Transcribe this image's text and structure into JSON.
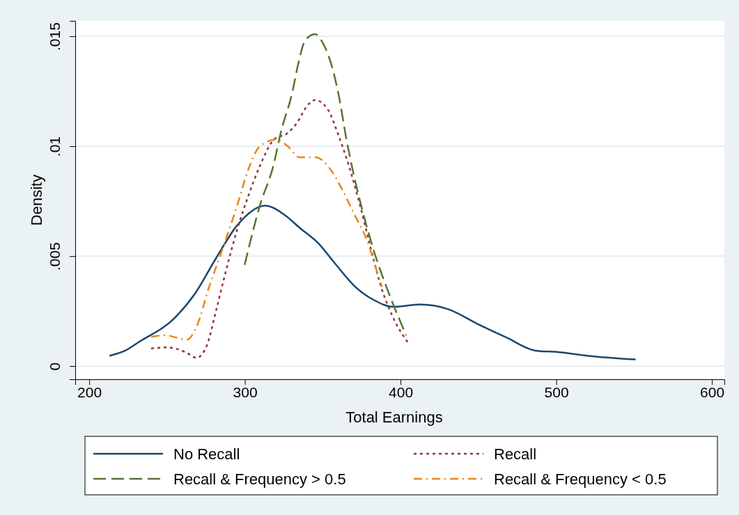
{
  "chart_data": {
    "type": "line",
    "xlabel": "Total Earnings",
    "ylabel": "Density",
    "xlim": [
      191,
      608
    ],
    "ylim": [
      -0.0006,
      0.0157
    ],
    "xticks": [
      200,
      300,
      400,
      500,
      600
    ],
    "yticks": [
      {
        "value": 0,
        "label": "0"
      },
      {
        "value": 0.005,
        "label": ".005"
      },
      {
        "value": 0.01,
        "label": ".01"
      },
      {
        "value": 0.015,
        "label": ".015"
      }
    ],
    "grid": "y",
    "legend": "bottom",
    "series": [
      {
        "name": "No Recall",
        "color": "#1a476f",
        "line_style": "solid",
        "x": [
          213,
          223,
          232,
          255,
          268,
          281.4,
          295,
          313,
          325,
          335,
          347,
          357.5,
          371,
          383,
          395,
          412.5,
          430,
          450,
          468,
          487,
          500.7,
          520,
          551
        ],
        "values": [
          0.00047,
          0.0007,
          0.0011,
          0.0022,
          0.0033,
          0.0049,
          0.0064,
          0.0073,
          0.0069,
          0.0063,
          0.0056,
          0.0047,
          0.0036,
          0.003,
          0.0027,
          0.0028,
          0.0026,
          0.0019,
          0.0013,
          0.0007,
          0.00064,
          0.00047,
          0.0003
        ]
      },
      {
        "name": "Recall",
        "color": "#90353b",
        "line_style": "dotted",
        "x": [
          239.8,
          250,
          262,
          269,
          275.6,
          281.4,
          287,
          295,
          302.5,
          309.6,
          318.6,
          327.5,
          333.8,
          339.6,
          345,
          353,
          360.6,
          366.4,
          374,
          380,
          387.5,
          394.6,
          405.4
        ],
        "values": [
          0.0008,
          0.00085,
          0.00063,
          0.00038,
          0.00095,
          0.0025,
          0.0041,
          0.0062,
          0.0078,
          0.0091,
          0.0103,
          0.0106,
          0.0111,
          0.0118,
          0.0121,
          0.0117,
          0.0104,
          0.0092,
          0.0073,
          0.0056,
          0.0036,
          0.0023,
          0.001
        ]
      },
      {
        "name": "Recall & Frequency > 0.5",
        "color": "#55752f",
        "line_style": "dashed",
        "x": [
          299.8,
          309.6,
          318.6,
          323,
          330.6,
          333.8,
          338.7,
          345,
          350,
          356,
          360.6,
          365,
          369.6,
          375.4,
          383,
          392,
          403.6
        ],
        "values": [
          0.0046,
          0.0073,
          0.0092,
          0.0106,
          0.0125,
          0.0136,
          0.0148,
          0.0151,
          0.0147,
          0.0136,
          0.0122,
          0.0104,
          0.0088,
          0.0071,
          0.0052,
          0.0034,
          0.0014
        ]
      },
      {
        "name": "Recall & Frequency < 0.5",
        "color": "#e8871e",
        "line_style": "dashdot",
        "x": [
          239.8,
          248.8,
          262.6,
          269,
          277,
          286,
          295,
          302.5,
          309.6,
          320,
          327.5,
          335,
          345.4,
          354.4,
          362,
          369.6,
          378.5,
          385.7,
          388
        ],
        "values": [
          0.00133,
          0.0014,
          0.0012,
          0.0018,
          0.0036,
          0.0054,
          0.0073,
          0.009,
          0.01,
          0.0103,
          0.01,
          0.0095,
          0.0095,
          0.009,
          0.0081,
          0.007,
          0.0057,
          0.0041,
          0.0036
        ]
      }
    ]
  }
}
